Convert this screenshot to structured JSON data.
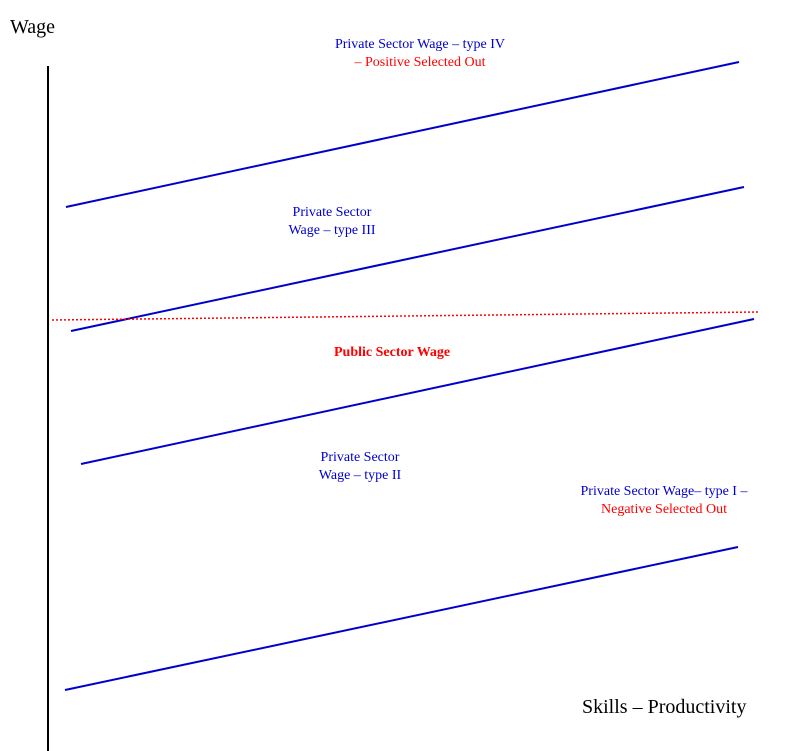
{
  "axes": {
    "y_label": "Wage",
    "x_label": "Skills – Productivity"
  },
  "labels": {
    "type_iv_line1": "Private Sector Wage – type IV",
    "type_iv_line2": "– Positive Selected Out",
    "type_iii_line1": "Private Sector",
    "type_iii_line2": "Wage – type III",
    "public": "Public Sector Wage",
    "type_ii_line1": "Private Sector",
    "type_ii_line2": "Wage – type II",
    "type_i_line1": "Private Sector Wage– type I –",
    "type_i_line2": "Negative Selected Out"
  },
  "colors": {
    "private_line": "#0000cc",
    "public_line": "#ff0000",
    "axis": "#000000",
    "label_blue": "#0000cc",
    "label_red": "#ff0000"
  }
}
